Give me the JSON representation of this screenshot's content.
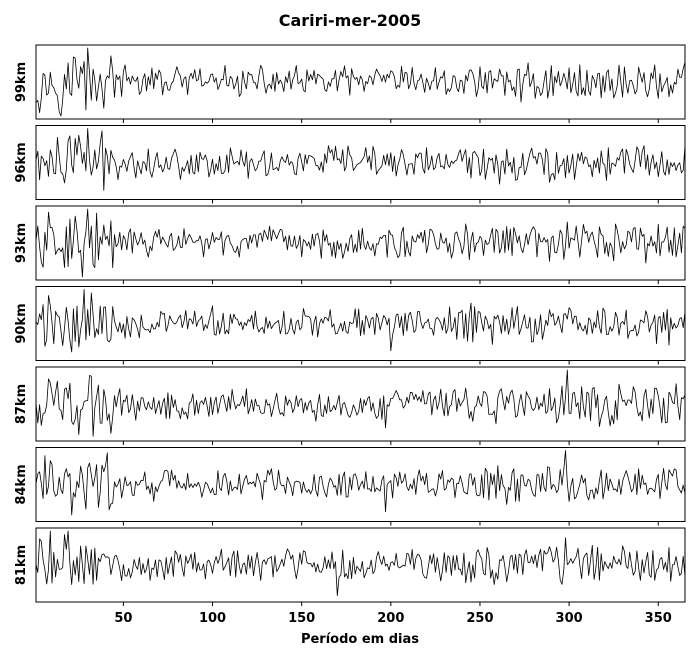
{
  "chart_data": {
    "type": "line",
    "title": "Cariri-mer-2005",
    "xlabel": "Período em dias",
    "xlim": [
      1,
      365
    ],
    "xticks": [
      50,
      100,
      150,
      200,
      250,
      300,
      350
    ],
    "grid": false,
    "legend": "none",
    "line_color": "#000000",
    "panels": [
      {
        "label": "99km",
        "peaks": [
          {
            "x": 30,
            "v": 1.0
          },
          {
            "x": 23,
            "v": 0.7
          },
          {
            "x": 250,
            "v": 0.45
          }
        ]
      },
      {
        "label": "96km",
        "peaks": [
          {
            "x": 30,
            "v": 1.0
          },
          {
            "x": 25,
            "v": 0.8
          },
          {
            "x": 330,
            "v": 0.4
          }
        ]
      },
      {
        "label": "93km",
        "peaks": [
          {
            "x": 30,
            "v": 1.0
          },
          {
            "x": 20,
            "v": 0.7
          },
          {
            "x": 350,
            "v": 0.55
          }
        ]
      },
      {
        "label": "90km",
        "peaks": [
          {
            "x": 28,
            "v": 1.0
          },
          {
            "x": 32,
            "v": 0.9
          },
          {
            "x": 200,
            "v": -0.8
          }
        ]
      },
      {
        "label": "87km",
        "peaks": [
          {
            "x": 299,
            "v": 1.0
          },
          {
            "x": 25,
            "v": -0.9
          },
          {
            "x": 197,
            "v": -0.7
          }
        ]
      },
      {
        "label": "84km",
        "peaks": [
          {
            "x": 298,
            "v": 1.0
          },
          {
            "x": 197,
            "v": -0.8
          },
          {
            "x": 300,
            "v": -0.5
          }
        ]
      },
      {
        "label": "81km",
        "peaks": [
          {
            "x": 9,
            "v": 1.0
          },
          {
            "x": 170,
            "v": -0.9
          },
          {
            "x": 298,
            "v": 0.8
          }
        ]
      }
    ]
  }
}
